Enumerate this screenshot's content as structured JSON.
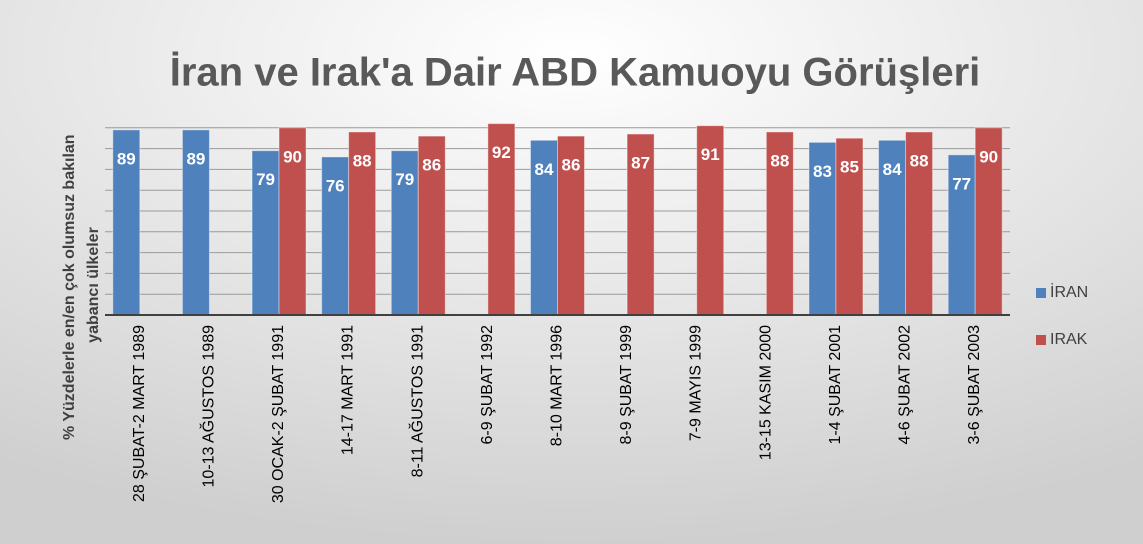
{
  "chart_data": {
    "type": "bar",
    "title": "İran ve Irak'a Dair ABD Kamuoyu Görüşleri",
    "y_label": "% Yüzdelerle en/en çok olumsuz bakılan yabancı ülkeler",
    "categories": [
      "28 ŞUBAT-2 MART 1989",
      "10-13 AĞUSTOS 1989",
      "30 OCAK-2 ŞUBAT 1991",
      "14-17 MART 1991",
      "8-11 AĞUSTOS 1991",
      "6-9 ŞUBAT 1992",
      "8-10 MART 1996",
      "8-9 ŞUBAT 1999",
      "7-9 MAYIS 1999",
      "13-15 KASIM 2000",
      "1-4 ŞUBAT 2001",
      "4-6 ŞUBAT 2002",
      "3-6 ŞUBAT 2003"
    ],
    "series": [
      {
        "name": "İRAN",
        "color": "#4f81bd",
        "values": [
          89,
          89,
          79,
          76,
          79,
          null,
          84,
          null,
          null,
          null,
          83,
          84,
          77
        ]
      },
      {
        "name": "IRAK",
        "color": "#c0504d",
        "values": [
          null,
          null,
          90,
          88,
          86,
          92,
          86,
          87,
          91,
          88,
          85,
          88,
          90
        ]
      }
    ],
    "ylim": [
      0,
      100
    ],
    "yticks": [
      0,
      10,
      20,
      30,
      40,
      50,
      60,
      70,
      80,
      90
    ],
    "grid": true,
    "legend": "right"
  }
}
